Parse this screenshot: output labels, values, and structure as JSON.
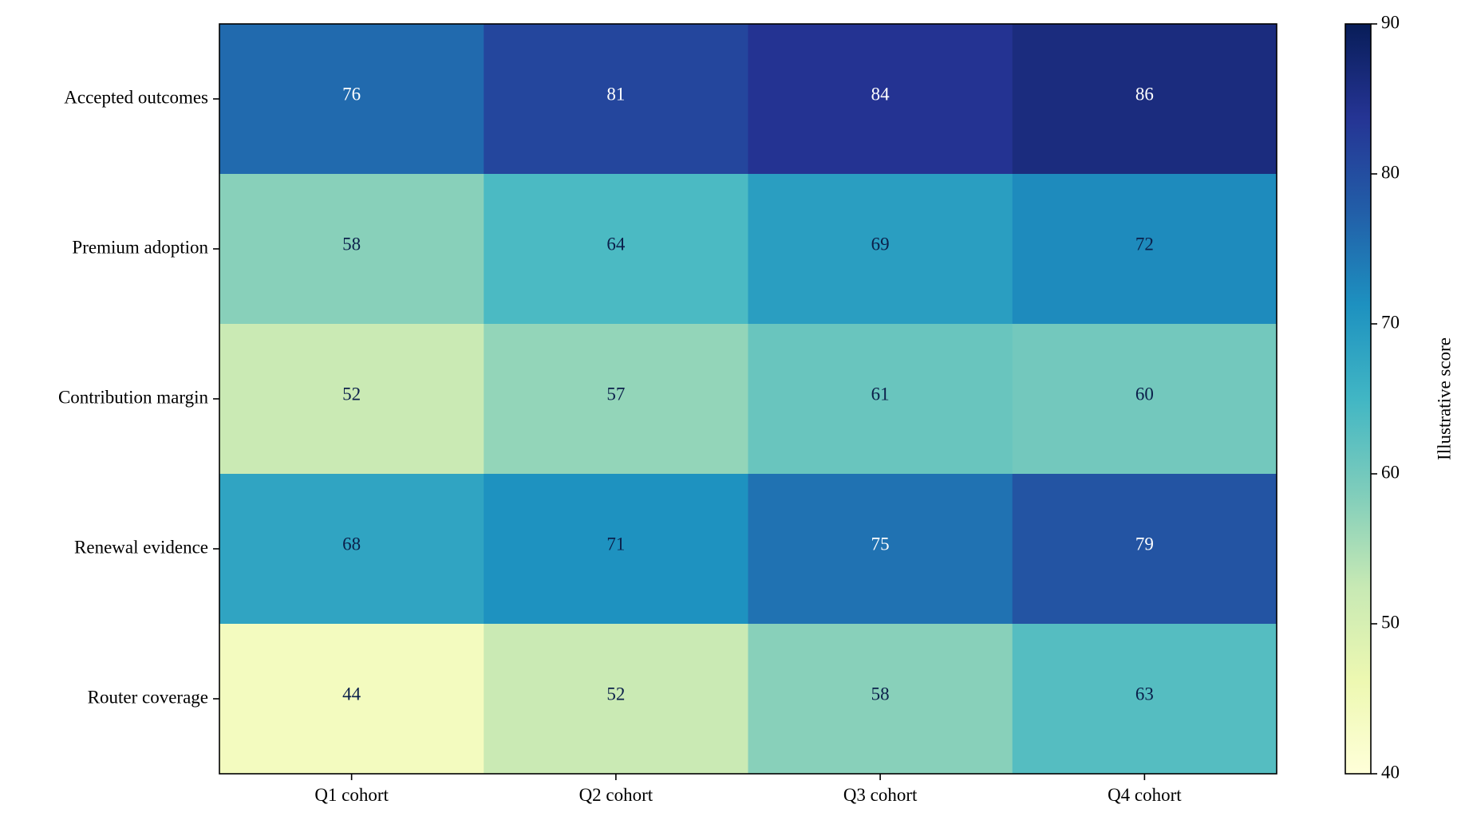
{
  "chart_data": {
    "type": "heatmap",
    "title": "",
    "xlabel": "",
    "ylabel": "",
    "categories": [
      "Q1 cohort",
      "Q2 cohort",
      "Q3 cohort",
      "Q4 cohort"
    ],
    "rows": [
      "Accepted outcomes",
      "Premium adoption",
      "Contribution margin",
      "Renewal evidence",
      "Router coverage"
    ],
    "values": [
      [
        76,
        81,
        84,
        86
      ],
      [
        58,
        64,
        69,
        72
      ],
      [
        52,
        57,
        61,
        60
      ],
      [
        68,
        71,
        75,
        79
      ],
      [
        44,
        52,
        58,
        63
      ]
    ],
    "colorbar": {
      "label": "Illustrative score",
      "range": [
        40,
        90
      ],
      "ticks": [
        40,
        50,
        60,
        70,
        80,
        90
      ],
      "colormap": "YlGnBu"
    },
    "colors": {
      "dark_text": "#0b1f4a",
      "light_text": "#ffffff",
      "axis": "#000000"
    }
  }
}
